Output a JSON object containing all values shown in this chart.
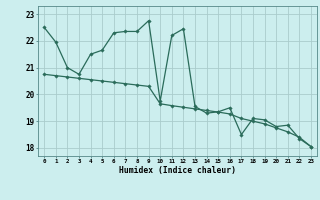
{
  "xlabel": "Humidex (Indice chaleur)",
  "ylabel": "",
  "bg_color": "#cceeee",
  "grid_color": "#aacccc",
  "line_color": "#2a6b5a",
  "xlim": [
    -0.5,
    23.5
  ],
  "ylim": [
    17.7,
    23.3
  ],
  "xticks": [
    0,
    1,
    2,
    3,
    4,
    5,
    6,
    7,
    8,
    9,
    10,
    11,
    12,
    13,
    14,
    15,
    16,
    17,
    18,
    19,
    20,
    21,
    22,
    23
  ],
  "yticks": [
    18,
    19,
    20,
    21,
    22,
    23
  ],
  "line1_x": [
    0,
    1,
    2,
    3,
    4,
    5,
    6,
    7,
    8,
    9,
    10,
    11,
    12,
    13,
    14,
    15,
    16,
    17,
    18,
    19,
    20,
    21,
    22,
    23
  ],
  "line1_y": [
    22.5,
    21.95,
    21.0,
    20.75,
    21.5,
    21.65,
    22.3,
    22.35,
    22.35,
    22.75,
    19.75,
    22.2,
    22.45,
    19.55,
    19.3,
    19.35,
    19.5,
    18.5,
    19.1,
    19.05,
    18.8,
    18.85,
    18.35,
    18.05
  ],
  "line2_x": [
    0,
    1,
    2,
    3,
    4,
    5,
    6,
    7,
    8,
    9,
    10,
    11,
    12,
    13,
    14,
    15,
    16,
    17,
    18,
    19,
    20,
    21,
    22,
    23
  ],
  "line2_y": [
    20.75,
    20.7,
    20.65,
    20.6,
    20.55,
    20.5,
    20.45,
    20.4,
    20.35,
    20.3,
    19.65,
    19.58,
    19.52,
    19.46,
    19.4,
    19.34,
    19.27,
    19.1,
    19.0,
    18.9,
    18.75,
    18.6,
    18.4,
    18.05
  ]
}
